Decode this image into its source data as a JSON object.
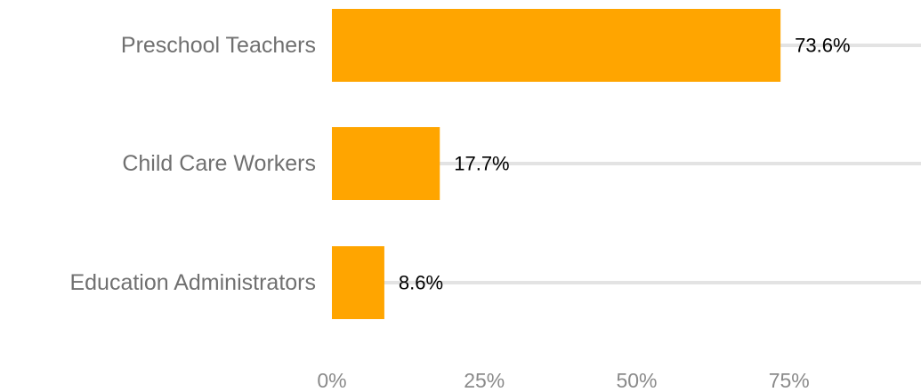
{
  "chart_data": {
    "type": "bar",
    "orientation": "horizontal",
    "categories": [
      "Preschool Teachers",
      "Child Care Workers",
      "Education Administrators"
    ],
    "values": [
      73.6,
      17.7,
      8.6
    ],
    "value_labels": [
      "73.6%",
      "17.7%",
      "8.6%"
    ],
    "x_ticks": [
      0,
      25,
      50,
      75
    ],
    "x_tick_labels": [
      "0%",
      "25%",
      "50%",
      "75%"
    ],
    "xlim": [
      0,
      97
    ],
    "grid": true,
    "legend": "none",
    "title": "",
    "xlabel": "",
    "ylabel": ""
  },
  "colors": {
    "bar": "#FFA500",
    "grid": "#e3e3e3",
    "category_text": "#707070",
    "tick_text": "#8a8a8a",
    "value_text": "#000000"
  }
}
